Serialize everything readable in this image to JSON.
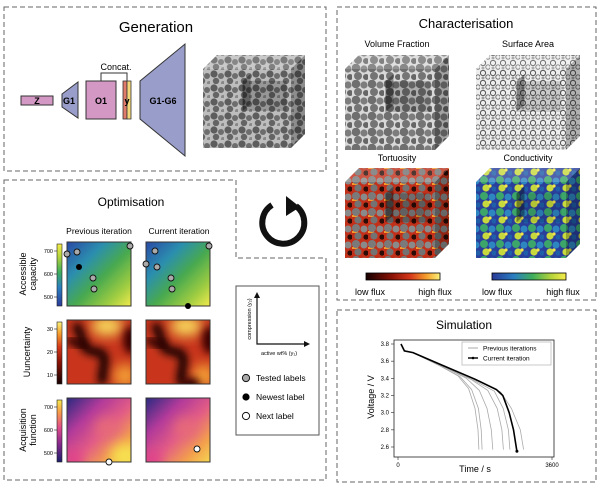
{
  "generation": {
    "title": "Generation",
    "blocks": {
      "z": "Z",
      "g1": "G1",
      "o1": "O1",
      "y": "y",
      "g1g6": "G1-G6"
    },
    "concat_label": "Concat.",
    "colors": {
      "pink": "#d399c4",
      "blue": "#999dc9",
      "y_red": "#e07a6a",
      "y_yellow": "#f4d77a"
    }
  },
  "characterisation": {
    "title": "Characterisation",
    "panels": [
      {
        "label": "Volume Fraction"
      },
      {
        "label": "Surface Area"
      },
      {
        "label": "Tortuosity"
      },
      {
        "label": "Conductivity"
      }
    ],
    "colorbars": [
      {
        "low": "low flux",
        "high": "high flux",
        "colormap": "hot"
      },
      {
        "low": "low flux",
        "high": "high flux",
        "colormap": "viridis"
      }
    ]
  },
  "optimisation": {
    "title": "Optimisation",
    "columns": [
      "Previous iteration",
      "Current iteration"
    ],
    "rows": [
      {
        "label_line1": "Accessible",
        "label_line2": "capacity",
        "ticks": [
          "700",
          "600",
          "500"
        ],
        "colormap": "viridis"
      },
      {
        "label_line1": "Uuncertainty",
        "label_line2": "",
        "ticks": [
          "30",
          "20",
          "10"
        ],
        "colormap": "hot"
      },
      {
        "label_line1": "Acquisition",
        "label_line2": "function",
        "ticks": [
          "700",
          "600",
          "500"
        ],
        "colormap": "plasma"
      }
    ]
  },
  "legend": {
    "y_axis": "compression (y₂)",
    "x_axis": "active wt% (y₁)",
    "items": [
      {
        "label": "Tested labels",
        "color": "#aaaaaa"
      },
      {
        "label": "Newest label",
        "color": "#000000"
      },
      {
        "label": "Next label",
        "color": "#ffffff"
      }
    ]
  },
  "cycle_icon": "circular-arrow-icon",
  "simulation": {
    "title": "Simulation",
    "chart_data": {
      "type": "line",
      "xlabel": "Time / s",
      "ylabel": "Voltage / V",
      "xlim": [
        0,
        3600
      ],
      "ylim": [
        2.5,
        3.85
      ],
      "xticks": [
        "0",
        "3600"
      ],
      "yticks": [
        "3.8",
        "3.6",
        "3.4",
        "3.2",
        "3.0",
        "2.8",
        "2.6"
      ],
      "legend_position": "top-right",
      "legend": [
        "Previous iterations",
        "Current iteration"
      ],
      "series": [
        {
          "name": "Previous iterations",
          "color": "#aaaaaa",
          "points": [
            [
              70,
              3.8
            ],
            [
              150,
              3.72
            ],
            [
              350,
              3.7
            ],
            [
              1000,
              3.54
            ],
            [
              1400,
              3.43
            ],
            [
              1650,
              3.28
            ],
            [
              1800,
              3.05
            ],
            [
              1870,
              2.8
            ],
            [
              1890,
              2.57
            ]
          ]
        },
        {
          "name": "Previous iterations",
          "color": "#aaaaaa",
          "points": [
            [
              70,
              3.8
            ],
            [
              150,
              3.72
            ],
            [
              350,
              3.7
            ],
            [
              1000,
              3.54
            ],
            [
              1450,
              3.42
            ],
            [
              1720,
              3.27
            ],
            [
              1880,
              3.05
            ],
            [
              1945,
              2.8
            ],
            [
              1965,
              2.57
            ]
          ]
        },
        {
          "name": "Previous iterations",
          "color": "#aaaaaa",
          "points": [
            [
              70,
              3.8
            ],
            [
              150,
              3.72
            ],
            [
              350,
              3.7
            ],
            [
              1000,
              3.55
            ],
            [
              1600,
              3.4
            ],
            [
              1900,
              3.26
            ],
            [
              2080,
              3.05
            ],
            [
              2180,
              2.8
            ],
            [
              2215,
              2.57
            ]
          ]
        },
        {
          "name": "Previous iterations",
          "color": "#aaaaaa",
          "points": [
            [
              70,
              3.8
            ],
            [
              150,
              3.72
            ],
            [
              350,
              3.7
            ],
            [
              1000,
              3.55
            ],
            [
              1700,
              3.39
            ],
            [
              2100,
              3.26
            ],
            [
              2320,
              3.05
            ],
            [
              2430,
              2.8
            ],
            [
              2465,
              2.57
            ]
          ]
        },
        {
          "name": "Previous iterations",
          "color": "#aaaaaa",
          "points": [
            [
              70,
              3.8
            ],
            [
              150,
              3.72
            ],
            [
              350,
              3.7
            ],
            [
              1000,
              3.55
            ],
            [
              1800,
              3.37
            ],
            [
              2250,
              3.25
            ],
            [
              2460,
              3.05
            ],
            [
              2580,
              2.8
            ],
            [
              2615,
              2.57
            ]
          ]
        },
        {
          "name": "Previous iterations",
          "color": "#aaaaaa",
          "points": [
            [
              70,
              3.8
            ],
            [
              150,
              3.72
            ],
            [
              350,
              3.7
            ],
            [
              1000,
              3.56
            ],
            [
              1900,
              3.36
            ],
            [
              2400,
              3.24
            ],
            [
              2650,
              3.05
            ],
            [
              2860,
              2.8
            ],
            [
              2935,
              2.57
            ]
          ]
        },
        {
          "name": "Current iteration",
          "color": "#000000",
          "points": [
            [
              70,
              3.8
            ],
            [
              150,
              3.72
            ],
            [
              350,
              3.7
            ],
            [
              1000,
              3.56
            ],
            [
              1800,
              3.39
            ],
            [
              2300,
              3.27
            ],
            [
              2450,
              3.2
            ],
            [
              2600,
              3.0
            ],
            [
              2700,
              2.8
            ],
            [
              2780,
              2.55
            ]
          ]
        }
      ]
    }
  }
}
